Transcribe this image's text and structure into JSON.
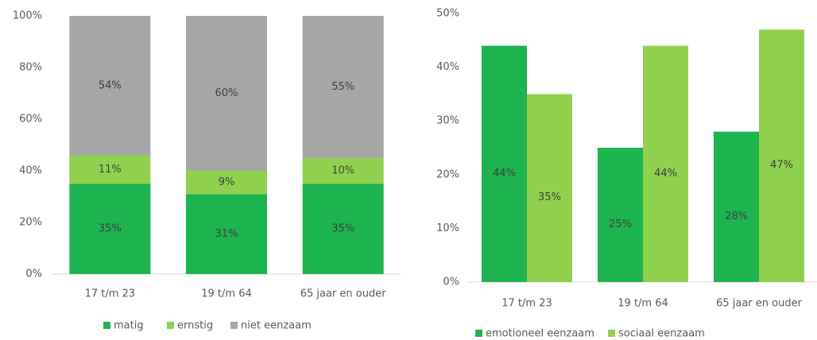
{
  "chart_data": [
    {
      "type": "bar",
      "stacked": true,
      "categories": [
        "17 t/m 23",
        "19 t/m 64",
        "65 jaar en ouder"
      ],
      "series": [
        {
          "name": "matig",
          "color": "#1db34f",
          "values": [
            35,
            31,
            35
          ],
          "value_labels": [
            "35%",
            "31%",
            "35%"
          ]
        },
        {
          "name": "ernstig",
          "color": "#8fd14f",
          "values": [
            11,
            9,
            10
          ],
          "value_labels": [
            "11%",
            "9%",
            "10%"
          ]
        },
        {
          "name": "niet eenzaam",
          "color": "#a6a6a6",
          "values": [
            54,
            60,
            55
          ],
          "value_labels": [
            "54%",
            "60%",
            "55%"
          ]
        }
      ],
      "ylim": [
        0,
        100
      ],
      "yticks": [
        {
          "value": 0,
          "label": "0%"
        },
        {
          "value": 20,
          "label": "20%"
        },
        {
          "value": 40,
          "label": "40%"
        },
        {
          "value": 60,
          "label": "60%"
        },
        {
          "value": 80,
          "label": "80%"
        },
        {
          "value": 100,
          "label": "100%"
        }
      ]
    },
    {
      "type": "bar",
      "stacked": false,
      "categories": [
        "17 t/m 23",
        "19 t/m 64",
        "65 jaar en ouder"
      ],
      "series": [
        {
          "name": "emotioneel eenzaam",
          "color": "#1db34f",
          "values": [
            44,
            25,
            28
          ],
          "value_labels": [
            "44%",
            "25%",
            "28%"
          ]
        },
        {
          "name": "sociaal eenzaam",
          "color": "#8fd14f",
          "values": [
            35,
            44,
            47
          ],
          "value_labels": [
            "35%",
            "44%",
            "47%"
          ]
        }
      ],
      "ylim": [
        0,
        50
      ],
      "yticks": [
        {
          "value": 0,
          "label": "0%"
        },
        {
          "value": 10,
          "label": "10%"
        },
        {
          "value": 20,
          "label": "20%"
        },
        {
          "value": 30,
          "label": "30%"
        },
        {
          "value": 40,
          "label": "40%"
        },
        {
          "value": 50,
          "label": "50%"
        }
      ]
    }
  ]
}
